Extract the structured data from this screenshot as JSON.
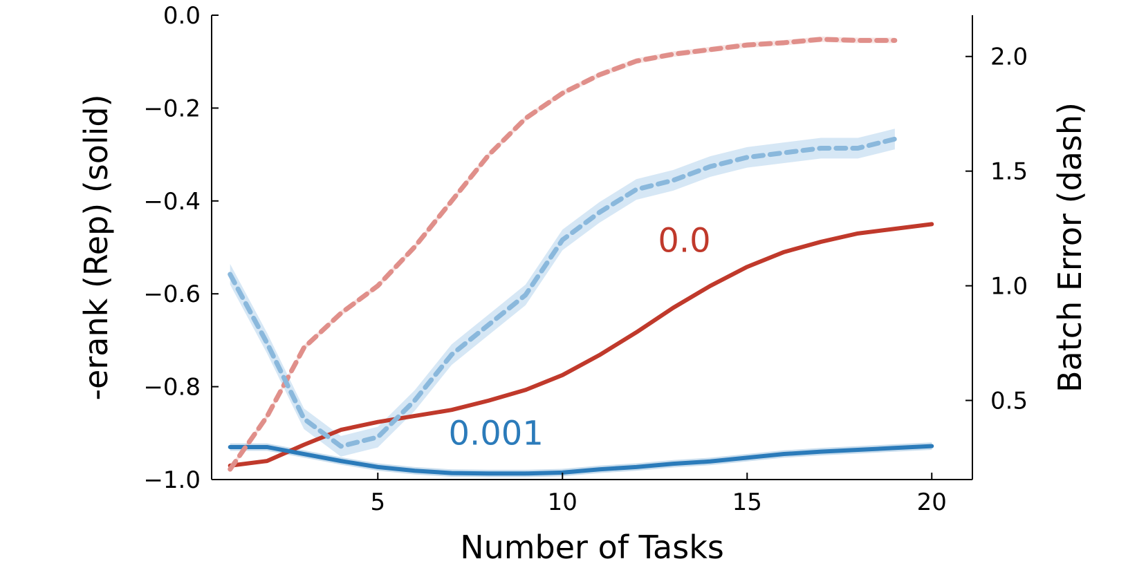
{
  "chart_data": {
    "type": "line",
    "title": "",
    "xlabel": "Number of Tasks",
    "ylabel_left": "-erank (Rep) (solid)",
    "ylabel_right": "Batch Error (dash)",
    "xlim": [
      0.5,
      21.1
    ],
    "ylim_left": [
      -1.0,
      0.0
    ],
    "ylim_right": [
      0.155,
      2.18
    ],
    "x_ticks": [
      5,
      10,
      15,
      20
    ],
    "y_ticks_left": [
      {
        "value": 0.0,
        "label": "0.0"
      },
      {
        "value": -0.2,
        "label": "−0.2"
      },
      {
        "value": -0.4,
        "label": "−0.4"
      },
      {
        "value": -0.6,
        "label": "−0.6"
      },
      {
        "value": -0.8,
        "label": "−0.8"
      },
      {
        "value": -1.0,
        "label": "−1.0"
      }
    ],
    "y_ticks_right": [
      {
        "value": 0.5,
        "label": "0.5"
      },
      {
        "value": 1.0,
        "label": "1.0"
      },
      {
        "value": 1.5,
        "label": "1.5"
      },
      {
        "value": 2.0,
        "label": "2.0"
      }
    ],
    "grid": false,
    "series": [
      {
        "id": "red-solid",
        "axis": "left",
        "style": "solid",
        "color": "#c0392b",
        "x": [
          1,
          2,
          3,
          4,
          5,
          6,
          7,
          8,
          9,
          10,
          11,
          12,
          13,
          14,
          15,
          16,
          17,
          18,
          19,
          20
        ],
        "y": [
          -0.97,
          -0.96,
          -0.925,
          -0.893,
          -0.876,
          -0.863,
          -0.85,
          -0.83,
          -0.807,
          -0.775,
          -0.732,
          -0.683,
          -0.63,
          -0.583,
          -0.542,
          -0.51,
          -0.488,
          -0.47,
          -0.46,
          -0.45
        ]
      },
      {
        "id": "blue-solid",
        "axis": "left",
        "style": "solid",
        "color": "#2b7bba",
        "x": [
          1,
          2,
          3,
          4,
          5,
          6,
          7,
          8,
          9,
          10,
          11,
          12,
          13,
          14,
          15,
          16,
          17,
          18,
          19,
          20
        ],
        "y": [
          -0.93,
          -0.93,
          -0.945,
          -0.96,
          -0.973,
          -0.981,
          -0.986,
          -0.987,
          -0.987,
          -0.985,
          -0.978,
          -0.973,
          -0.966,
          -0.961,
          -0.953,
          -0.945,
          -0.94,
          -0.936,
          -0.932,
          -0.928
        ],
        "band": 0.008
      },
      {
        "id": "red-dash",
        "axis": "right",
        "style": "dash",
        "color": "#e08f8a",
        "x": [
          1,
          2,
          3,
          4,
          5,
          6,
          7,
          8,
          9,
          10,
          11,
          12,
          13,
          14,
          15,
          16,
          17,
          18,
          19
        ],
        "y": [
          0.2,
          0.43,
          0.73,
          0.88,
          1.0,
          1.17,
          1.37,
          1.57,
          1.73,
          1.84,
          1.92,
          1.98,
          2.01,
          2.03,
          2.05,
          2.06,
          2.075,
          2.07,
          2.07
        ],
        "band": 0.012
      },
      {
        "id": "blue-dash",
        "axis": "right",
        "style": "dash",
        "color": "#8ab8dc",
        "band_color": "#cfe3f3",
        "x": [
          1,
          2,
          3,
          4,
          5,
          6,
          7,
          8,
          9,
          10,
          11,
          12,
          13,
          14,
          15,
          16,
          17,
          18,
          19
        ],
        "y": [
          1.05,
          0.75,
          0.42,
          0.3,
          0.34,
          0.5,
          0.7,
          0.83,
          0.96,
          1.2,
          1.32,
          1.42,
          1.46,
          1.52,
          1.56,
          1.58,
          1.6,
          1.6,
          1.64
        ],
        "band": 0.045
      }
    ],
    "annotations": [
      {
        "text": "0.0",
        "color": "#c0392b",
        "x": 13.3,
        "y": -0.51,
        "axis": "left"
      },
      {
        "text": "0.001",
        "color": "#2b7bba",
        "x": 8.2,
        "y": -0.925,
        "axis": "left"
      }
    ]
  }
}
